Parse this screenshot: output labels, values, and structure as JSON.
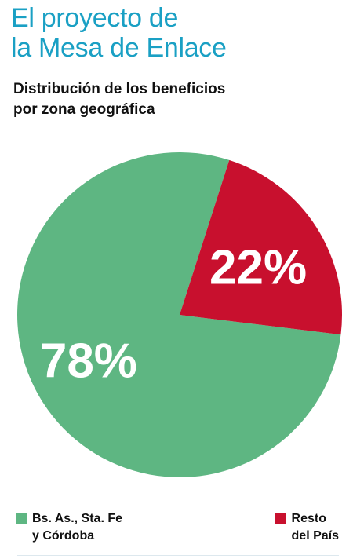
{
  "title": {
    "line1": "El proyecto de",
    "line2": "la Mesa de Enlace"
  },
  "chart_data": {
    "type": "pie",
    "title": "Distribución de los beneficios por zona geográfica",
    "title_lines": [
      "Distribución de los beneficios",
      "por zona geográfica"
    ],
    "slices": [
      {
        "label": "Bs. As., Sta. Fe y Córdoba",
        "legend_lines": [
          "Bs. As., Sta. Fe",
          "y Córdoba"
        ],
        "value": 78,
        "display": "78%",
        "color": "#5eb682"
      },
      {
        "label": "Resto del País",
        "legend_lines": [
          "Resto",
          "del País"
        ],
        "value": 22,
        "display": "22%",
        "color": "#c8102e"
      }
    ],
    "legend_position": "bottom"
  }
}
